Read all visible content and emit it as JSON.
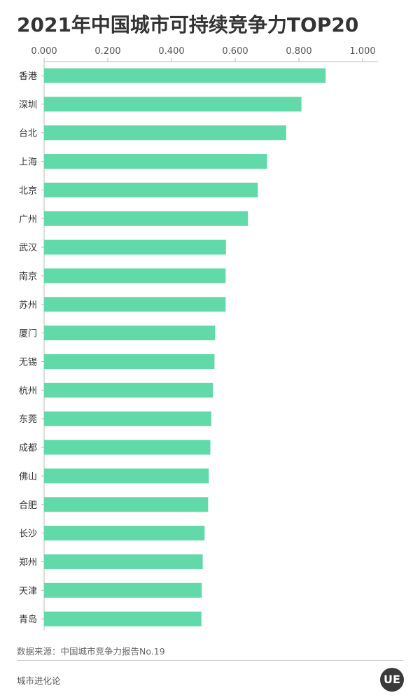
{
  "chart_data": {
    "type": "bar",
    "orientation": "horizontal",
    "title": "2021年中国城市可持续竞争力TOP20",
    "categories": [
      "香港",
      "深圳",
      "台北",
      "上海",
      "北京",
      "广州",
      "武汉",
      "南京",
      "苏州",
      "厦门",
      "无锡",
      "杭州",
      "东莞",
      "成都",
      "佛山",
      "合肥",
      "长沙",
      "郑州",
      "天津",
      "青岛"
    ],
    "values": [
      0.884,
      0.808,
      0.76,
      0.7,
      0.671,
      0.64,
      0.571,
      0.57,
      0.57,
      0.537,
      0.535,
      0.53,
      0.525,
      0.522,
      0.517,
      0.515,
      0.504,
      0.498,
      0.495,
      0.494
    ],
    "xlim": [
      0,
      1
    ],
    "x_ticks": [
      "0.000",
      "0.200",
      "0.400",
      "0.600",
      "0.800",
      "1.000"
    ],
    "x_tick_values": [
      0,
      0.2,
      0.4,
      0.6,
      0.8,
      1.0
    ],
    "axis_position": "top",
    "grid": false,
    "bar_color": "#62d9a9"
  },
  "source": "数据来源：中国城市竞争力报告No.19",
  "brand": "城市进化论",
  "logo_text": "UE"
}
